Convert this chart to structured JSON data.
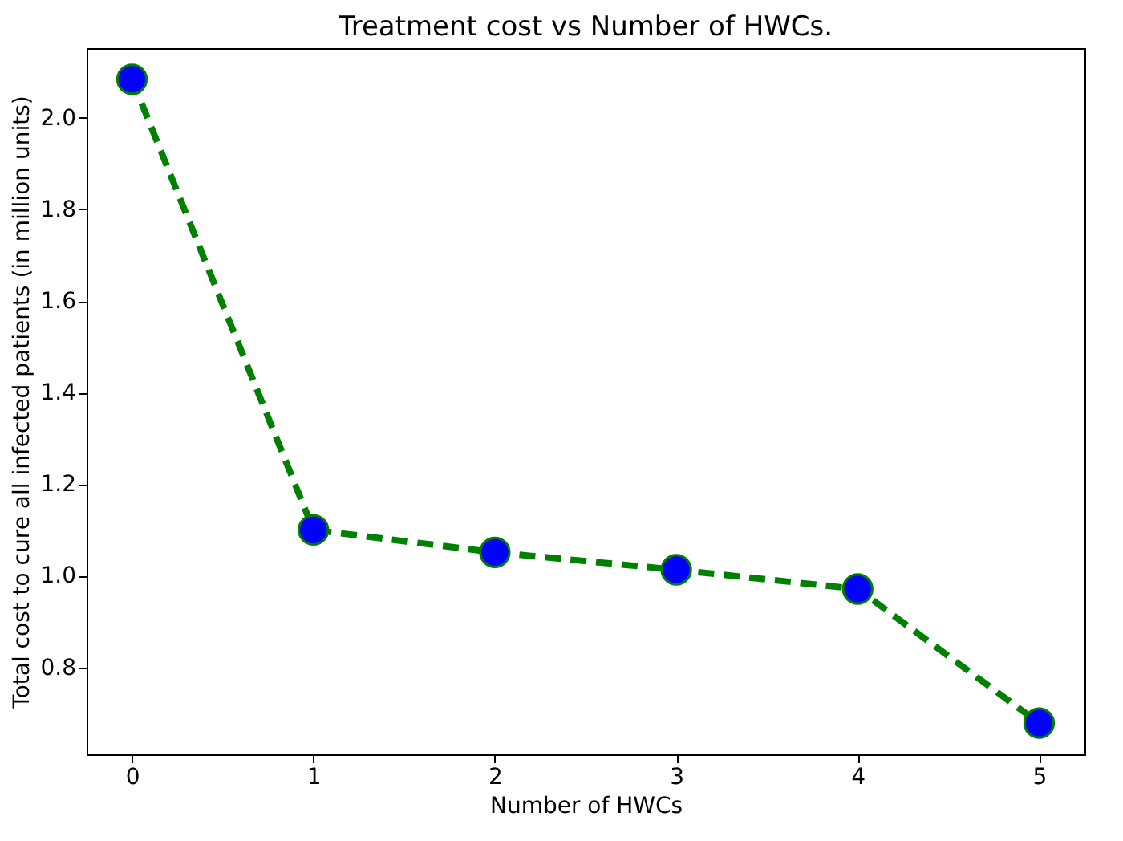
{
  "chart_data": {
    "type": "line",
    "title": "Treatment cost vs Number of HWCs.",
    "xlabel": "Number of HWCs",
    "ylabel": "Total cost to cure all infected patients (in million units)",
    "x": [
      0,
      1,
      2,
      3,
      4,
      5
    ],
    "series": [
      {
        "color": "#008000",
        "colors": [
          "#0000ff",
          "#0000ff",
          "#0000ff",
          "#0000ff",
          "#0000ff",
          "#0000ff"
        ],
        "values": [
          2.084,
          1.1,
          1.051,
          1.013,
          0.971,
          0.678
        ]
      }
    ],
    "xlim": [
      -0.25,
      5.25
    ],
    "xticks": [
      0,
      1,
      2,
      3,
      4,
      5
    ],
    "ylim": [
      0.61,
      2.152
    ],
    "yticks": [
      0.8,
      {
        "value": 1,
        "label": "1.0"
      },
      1.2,
      1.4,
      1.6,
      1.8,
      {
        "value": 2,
        "label": "2.0"
      }
    ],
    "marker": "circle",
    "line_style": "dashed",
    "grid": false
  }
}
